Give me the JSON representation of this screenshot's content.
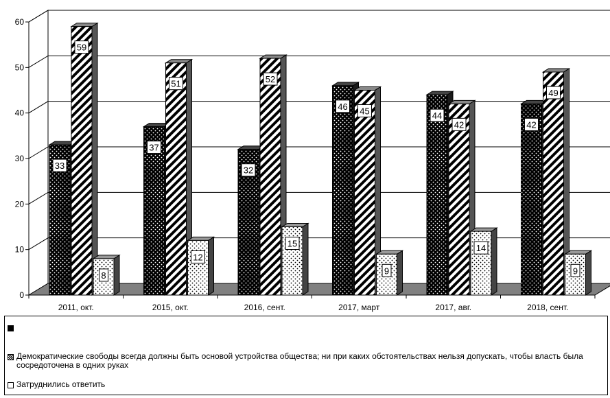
{
  "chart_data": {
    "type": "bar",
    "categories": [
      "2011, окт.",
      "2015, окт.",
      "2016, сент.",
      "2017, март",
      "2017, авг.",
      "2018, сент."
    ],
    "series": [
      {
        "name": "",
        "values": [
          33,
          37,
          32,
          46,
          44,
          42
        ],
        "pattern": "dark-dots"
      },
      {
        "name": "Демократические свободы всегда должны быть  основой устройства общества; ни при каких обстоятельствах нельзя допускать, чтобы власть была сосредоточена в одних руках",
        "values": [
          59,
          51,
          52,
          45,
          42,
          49
        ],
        "pattern": "diagonal-stripes"
      },
      {
        "name": "Затруднились ответить",
        "values": [
          8,
          12,
          15,
          9,
          14,
          9
        ],
        "pattern": "light-dots"
      }
    ],
    "xlabel": "",
    "ylabel": "",
    "ylim": [
      0,
      60
    ],
    "yticks": [
      0,
      10,
      20,
      30,
      40,
      50,
      60
    ],
    "grid": true,
    "legend_position": "bottom",
    "three_d": true
  }
}
